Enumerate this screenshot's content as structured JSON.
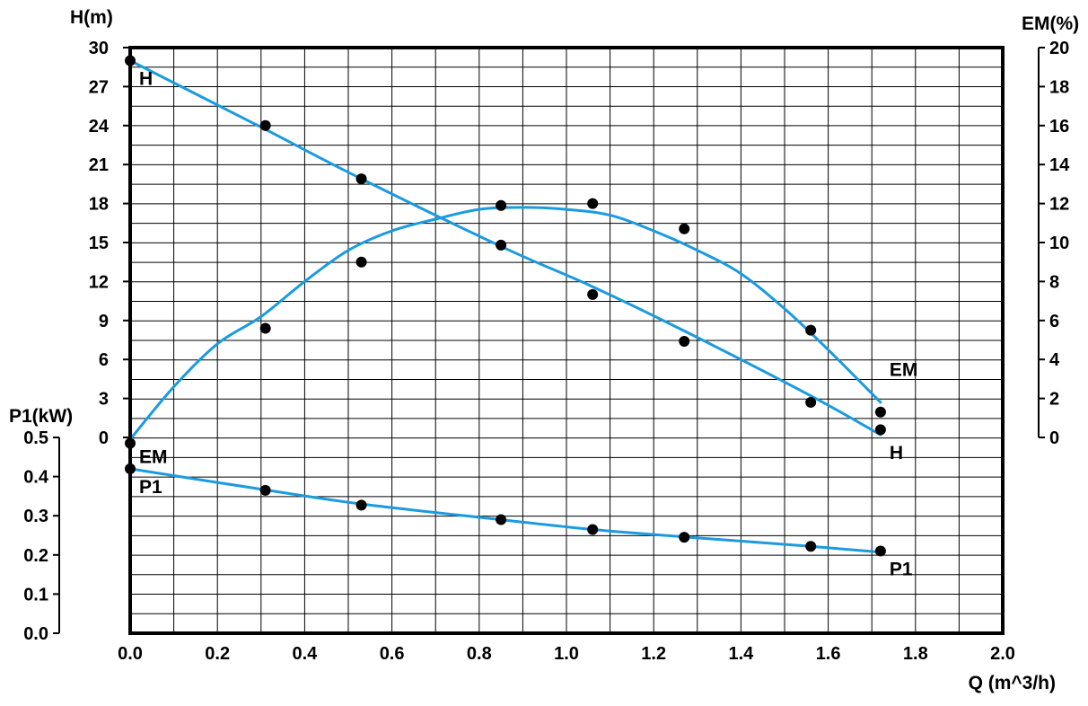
{
  "chart_data": {
    "type": "line",
    "x_axis": {
      "label": "Q (m^3/h)",
      "range": [
        0,
        2.0
      ],
      "ticks": [
        "0.0",
        "0.2",
        "0.4",
        "0.6",
        "0.8",
        "1.0",
        "1.2",
        "1.4",
        "1.6",
        "1.8",
        "2.0"
      ]
    },
    "y_axes": {
      "H": {
        "label": "H(m)",
        "range": [
          0,
          30
        ],
        "ticks": [
          "0",
          "3",
          "6",
          "9",
          "12",
          "15",
          "18",
          "21",
          "24",
          "27",
          "30"
        ]
      },
      "EM": {
        "label": "EM(%)",
        "range": [
          0,
          20
        ],
        "ticks": [
          "0",
          "2",
          "4",
          "6",
          "8",
          "10",
          "12",
          "14",
          "16",
          "18",
          "20"
        ]
      },
      "P1": {
        "label": "P1(kW)",
        "range": [
          0,
          0.5
        ],
        "ticks": [
          "0.0",
          "0.1",
          "0.2",
          "0.3",
          "0.4",
          "0.5"
        ]
      }
    },
    "grid": true,
    "series": [
      {
        "name": "H",
        "axis": "H",
        "color": "#1a9be0",
        "curve_x": [
          0.0,
          0.31,
          0.53,
          0.85,
          1.06,
          1.27,
          1.56,
          1.72
        ],
        "curve_y": [
          29.0,
          23.7,
          19.9,
          14.7,
          11.6,
          8.2,
          3.2,
          0.2
        ],
        "points": [
          {
            "x": 0.0,
            "y": 29.0
          },
          {
            "x": 0.31,
            "y": 24.0
          },
          {
            "x": 0.53,
            "y": 19.9
          },
          {
            "x": 0.85,
            "y": 14.8
          },
          {
            "x": 1.06,
            "y": 11.0
          },
          {
            "x": 1.27,
            "y": 7.4
          },
          {
            "x": 1.56,
            "y": 2.7
          },
          {
            "x": 1.72,
            "y": 0.6
          }
        ],
        "labels": [
          {
            "text": "H",
            "at_x": 0.0,
            "at_y": 29.0,
            "pos": "below-right"
          },
          {
            "text": "H",
            "at_x": 1.72,
            "at_y": 0.2,
            "pos": "below-right"
          }
        ]
      },
      {
        "name": "EM",
        "axis": "EM",
        "color": "#1a9be0",
        "curve_x": [
          0.0,
          0.1,
          0.2,
          0.3,
          0.4,
          0.5,
          0.6,
          0.7,
          0.8,
          0.9,
          1.0,
          1.1,
          1.2,
          1.3,
          1.4,
          1.5,
          1.6,
          1.72
        ],
        "curve_y": [
          -0.1,
          2.6,
          4.8,
          6.2,
          8.0,
          9.6,
          10.6,
          11.2,
          11.7,
          11.8,
          11.7,
          11.4,
          10.6,
          9.6,
          8.4,
          6.6,
          4.5,
          1.8
        ],
        "points": [
          {
            "x": 0.0,
            "y": -0.3
          },
          {
            "x": 0.31,
            "y": 5.6
          },
          {
            "x": 0.53,
            "y": 9.0
          },
          {
            "x": 0.85,
            "y": 11.9
          },
          {
            "x": 1.06,
            "y": 12.0
          },
          {
            "x": 1.27,
            "y": 10.7
          },
          {
            "x": 1.56,
            "y": 5.5
          },
          {
            "x": 1.72,
            "y": 1.3
          }
        ],
        "labels": [
          {
            "text": "EM",
            "at_x": 0.0,
            "at_y": -1.0,
            "pos": "right"
          },
          {
            "text": "EM",
            "at_x": 1.72,
            "at_y": 2.7,
            "pos": "above-right"
          }
        ]
      },
      {
        "name": "P1",
        "axis": "P1",
        "color": "#1a9be0",
        "curve_x": [
          0.0,
          0.31,
          0.53,
          0.85,
          1.06,
          1.27,
          1.56,
          1.72
        ],
        "curve_y": [
          0.42,
          0.366,
          0.33,
          0.29,
          0.265,
          0.246,
          0.222,
          0.207
        ],
        "points": [
          {
            "x": 0.0,
            "y": 0.42
          },
          {
            "x": 0.31,
            "y": 0.365
          },
          {
            "x": 0.53,
            "y": 0.327
          },
          {
            "x": 0.85,
            "y": 0.29
          },
          {
            "x": 1.06,
            "y": 0.265
          },
          {
            "x": 1.27,
            "y": 0.245
          },
          {
            "x": 1.56,
            "y": 0.222
          },
          {
            "x": 1.72,
            "y": 0.21
          }
        ],
        "labels": [
          {
            "text": "P1",
            "at_x": 0.0,
            "at_y": 0.42,
            "pos": "below-right"
          },
          {
            "text": "P1",
            "at_x": 1.72,
            "at_y": 0.21,
            "pos": "below-right"
          }
        ]
      }
    ]
  }
}
